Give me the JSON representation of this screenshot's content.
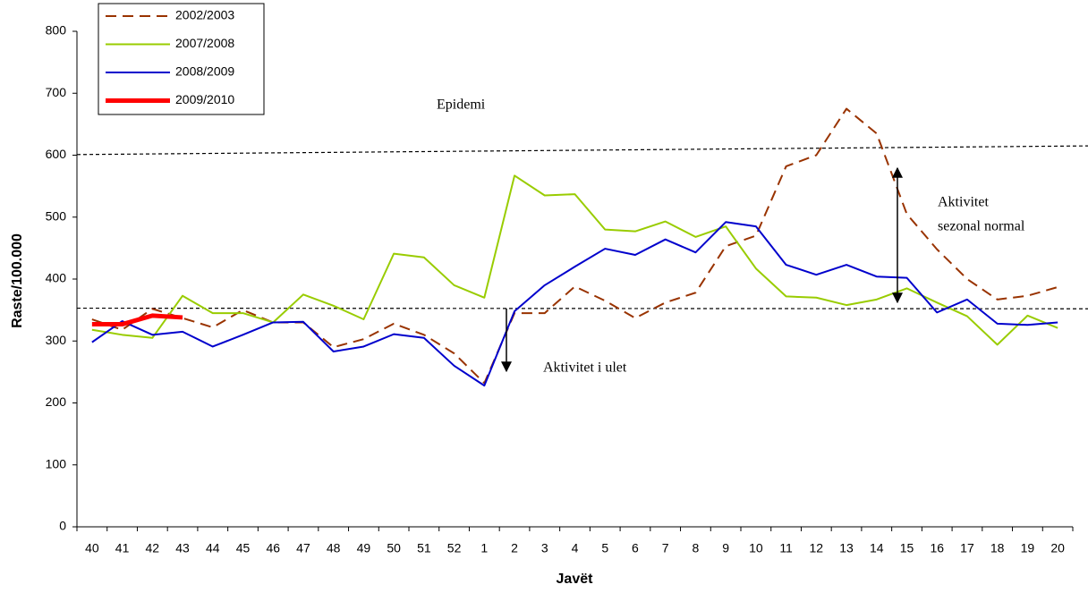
{
  "chart_data": {
    "type": "line",
    "x_label": "Javët",
    "y_label": "Raste/100.000",
    "categories": [
      "40",
      "41",
      "42",
      "43",
      "44",
      "45",
      "46",
      "47",
      "48",
      "49",
      "50",
      "51",
      "52",
      "1",
      "2",
      "3",
      "4",
      "5",
      "6",
      "7",
      "8",
      "9",
      "10",
      "11",
      "12",
      "13",
      "14",
      "15",
      "16",
      "17",
      "18",
      "19",
      "20"
    ],
    "ylim": [
      0,
      800
    ],
    "yticks": [
      0,
      100,
      200,
      300,
      400,
      500,
      600,
      700,
      800
    ],
    "series": [
      {
        "name": "2002/2003",
        "color": "#993300",
        "values": [
          335,
          318,
          352,
          337,
          322,
          350,
          330,
          330,
          290,
          303,
          328,
          310,
          280,
          232,
          345,
          345,
          388,
          365,
          337,
          362,
          378,
          453,
          470,
          582,
          600,
          675,
          635,
          505,
          448,
          400,
          367,
          373,
          387
        ]
      },
      {
        "name": "2007/2008",
        "color": "#99cc00",
        "values": [
          318,
          310,
          305,
          373,
          345,
          345,
          330,
          375,
          357,
          335,
          441,
          435,
          390,
          370,
          567,
          535,
          537,
          480,
          477,
          493,
          468,
          485,
          417,
          372,
          370,
          358,
          367,
          385,
          362,
          340,
          294,
          341,
          321
        ]
      },
      {
        "name": "2008/2009",
        "color": "#0000cc",
        "values": [
          298,
          332,
          310,
          315,
          291,
          310,
          330,
          331,
          283,
          291,
          311,
          305,
          260,
          228,
          348,
          390,
          420,
          449,
          439,
          464,
          443,
          492,
          485,
          423,
          407,
          423,
          404,
          402,
          346,
          367,
          328,
          326,
          330
        ]
      },
      {
        "name": "2009/2010",
        "color": "#ff0000",
        "values": [
          327,
          327,
          341,
          338,
          null,
          null,
          null,
          null,
          null,
          null,
          null,
          null,
          null,
          null,
          null,
          null,
          null,
          null,
          null,
          null,
          null,
          null,
          null,
          null,
          null,
          null,
          null,
          null,
          null,
          null,
          null,
          null,
          null
        ]
      }
    ],
    "reference_lines": [
      [
        601,
        615
      ],
      [
        353,
        352
      ]
    ],
    "annotations": [
      "Epidemi",
      "Aktivitet",
      "sezonal normal",
      "Aktivitet i ulet"
    ]
  }
}
